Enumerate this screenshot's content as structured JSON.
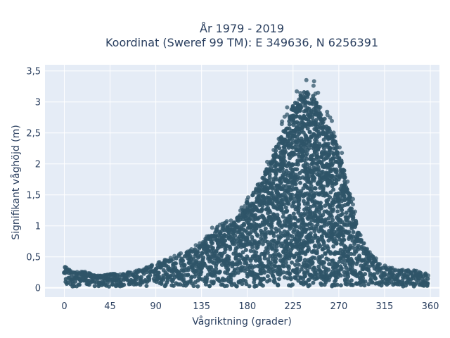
{
  "chart_data": {
    "type": "scatter",
    "title_lines": [
      "År 1979 - 2019",
      "Koordinat (Sweref 99 TM): E 349636, N 6256391"
    ],
    "xlabel": "Vågriktning (grader)",
    "ylabel": "Signifikant våghöjd (m)",
    "xlim": [
      -19,
      369
    ],
    "ylim": [
      -0.15,
      3.6
    ],
    "x_ticks": [
      0,
      45,
      90,
      135,
      180,
      225,
      270,
      315,
      360
    ],
    "x_tick_labels": [
      "0",
      "45",
      "90",
      "135",
      "180",
      "225",
      "270",
      "315",
      "360"
    ],
    "y_ticks": [
      0,
      0.5,
      1,
      1.5,
      2,
      2.5,
      3,
      3.5
    ],
    "y_tick_labels": [
      "0",
      "0,5",
      "1",
      "1,5",
      "2",
      "2,5",
      "3",
      "3,5"
    ],
    "grid": true,
    "marker_color": "#2f5468",
    "plot_bg": "#e5ecf6",
    "envelope": [
      {
        "x": 0,
        "y": 0.35
      },
      {
        "x": 10,
        "y": 0.25
      },
      {
        "x": 20,
        "y": 0.28
      },
      {
        "x": 30,
        "y": 0.2
      },
      {
        "x": 45,
        "y": 0.22
      },
      {
        "x": 60,
        "y": 0.24
      },
      {
        "x": 75,
        "y": 0.3
      },
      {
        "x": 90,
        "y": 0.4
      },
      {
        "x": 105,
        "y": 0.5
      },
      {
        "x": 120,
        "y": 0.6
      },
      {
        "x": 135,
        "y": 0.75
      },
      {
        "x": 150,
        "y": 1.05
      },
      {
        "x": 165,
        "y": 1.1
      },
      {
        "x": 180,
        "y": 1.5
      },
      {
        "x": 195,
        "y": 1.9
      },
      {
        "x": 210,
        "y": 2.5
      },
      {
        "x": 225,
        "y": 3.2
      },
      {
        "x": 235,
        "y": 3.42
      },
      {
        "x": 245,
        "y": 3.35
      },
      {
        "x": 255,
        "y": 3.0
      },
      {
        "x": 265,
        "y": 2.65
      },
      {
        "x": 270,
        "y": 2.4
      },
      {
        "x": 280,
        "y": 1.7
      },
      {
        "x": 290,
        "y": 0.9
      },
      {
        "x": 300,
        "y": 0.6
      },
      {
        "x": 315,
        "y": 0.35
      },
      {
        "x": 330,
        "y": 0.3
      },
      {
        "x": 345,
        "y": 0.28
      },
      {
        "x": 358,
        "y": 0.22
      }
    ]
  }
}
